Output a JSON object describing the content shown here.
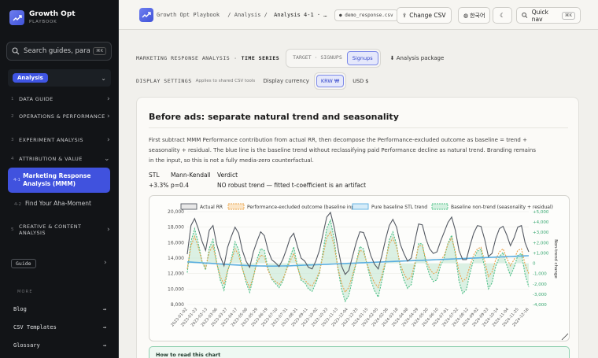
{
  "sidebar": {
    "brand_name": "Growth Opt",
    "brand_sub": "PLAYBOOK",
    "search_placeholder": "Search guides, para...",
    "search_kbd": "⌘K",
    "section_label": "Analysis",
    "nav": [
      {
        "num": "1",
        "label": "DATA GUIDE"
      },
      {
        "num": "2",
        "label": "OPERATIONS & PERFORMANCE"
      },
      {
        "num": "3",
        "label": "EXPERIMENT ANALYSIS"
      },
      {
        "num": "4",
        "label": "ATTRIBUTION & VALUE"
      },
      {
        "num": "5",
        "label": "CREATIVE & CONTENT ANALYSIS"
      }
    ],
    "active_item": {
      "num": "4-1",
      "label": "Marketing Response Analysis (MMM)"
    },
    "sub_item": {
      "num": "4-2",
      "label": "Find Your Aha-Moment"
    },
    "guide_label": "Guide",
    "more_label": "MORE",
    "footer_links": [
      "Blog",
      "CSV Templates",
      "Glossary"
    ]
  },
  "topbar": {
    "crumb1": "Growth Opt Playbook",
    "crumb2": "/ Analysis /",
    "crumb3": "Analysis 4-1 · …",
    "file": "demo_response.csv",
    "change_csv": "Change CSV",
    "lang": "한국어",
    "quick_nav": "Quick nav",
    "quick_kbd": "⌘K"
  },
  "controls": {
    "section": "MARKETING RESPONSE ANALYSIS",
    "sep": "·",
    "mode": "TIME SERIES",
    "seg_label": "TARGET · SIGNUPS",
    "seg_selected": "Signups",
    "package": "Analysis package",
    "display_settings": "DISPLAY SETTINGS",
    "display_note": "Applies to shared CSV tools",
    "currency_label": "Display currency",
    "currency_options": [
      "KRW ₩",
      "USD $"
    ]
  },
  "card": {
    "title": "Before ads: separate natural trend and seasonality",
    "description": "First subtract MMM Performance contribution from actual RR, then decompose the Performance-excluded outcome as baseline = trend + seasonality + residual. The blue line is the baseline trend without reclassifying paid Performance decline as natural trend. Branding remains in the input, so this is not a fully media-zero counterfactual.",
    "stats": {
      "h1": "STL",
      "v1": "+3.3%",
      "h2": "Mann-Kendall",
      "v2": "p=0.4",
      "h3": "Verdict",
      "v3": "NO robust trend — fitted t-coefficient is an artifact"
    },
    "howto": "How to read this chart"
  },
  "chart_data": {
    "type": "line",
    "legend": [
      "Actual RR",
      "Performance-excluded outcome (baseline input)",
      "Pure baseline STL trend",
      "Baseline non-trend (seasonality + residual)"
    ],
    "y_left_ticks": [
      "20,000",
      "18,000",
      "16,000",
      "14,000",
      "12,000",
      "10,000",
      "8,000"
    ],
    "y_left_range": [
      8000,
      20000
    ],
    "y_right_label": "Non-trend change",
    "y_right_ticks": [
      "+5,000",
      "+4,000",
      "+3,000",
      "+2,000",
      "+1,000",
      "0",
      "-1,000",
      "-2,000",
      "-3,000",
      "-4,000"
    ],
    "y_right_range": [
      -4000,
      5000
    ],
    "x_ticks": [
      "2023-01-02",
      "2023-01-23",
      "2023-02-13",
      "2023-03-06",
      "2023-03-27",
      "2023-04-17",
      "2023-05-08",
      "2023-05-29",
      "2023-06-19",
      "2023-07-10",
      "2023-07-31",
      "2023-08-21",
      "2023-09-11",
      "2023-10-02",
      "2023-10-23",
      "2023-11-13",
      "2023-12-04",
      "2023-12-25",
      "2024-01-15",
      "2024-02-05",
      "2024-02-26",
      "2024-03-18",
      "2024-04-08",
      "2024-04-29",
      "2024-05-20",
      "2024-06-10",
      "2024-07-01",
      "2024-07-22",
      "2024-08-12",
      "2024-09-02",
      "2024-09-23",
      "2024-10-14",
      "2024-11-04",
      "2024-11-25",
      "2024-12-16"
    ],
    "colors": {
      "actual": "#555a63",
      "excluded": "#e8a24a",
      "trend": "#5aaee0",
      "nontrend": "#4cbf86",
      "fill": "#bfe6d0"
    },
    "actual": [
      14500,
      18200,
      19100,
      17800,
      16200,
      15000,
      17600,
      18200,
      15800,
      14200,
      13000,
      15400,
      16800,
      18000,
      17200,
      15000,
      13600,
      12800,
      14800,
      16200,
      17400,
      16900,
      15000,
      13800,
      13400,
      12900,
      13800,
      15100,
      16600,
      17200,
      15500,
      14000,
      13600,
      12800,
      12600,
      13600,
      15000,
      17200,
      19300,
      19900,
      18000,
      15400,
      13000,
      11900,
      12400,
      14200,
      16000,
      17400,
      17300,
      16000,
      14300,
      13200,
      12600,
      14300,
      16400,
      18200,
      19000,
      18000,
      15800,
      14600,
      13600,
      14000,
      16200,
      18400,
      18300,
      16500,
      15200,
      14600,
      14800,
      16200,
      17400,
      18600,
      19300,
      17600,
      15000,
      13800,
      13800,
      15600,
      17200,
      18200,
      18100,
      16400,
      14200,
      14600,
      16500,
      17800,
      18100,
      17000,
      15600,
      16600,
      18000,
      18200,
      16000,
      14800
    ],
    "excluded": [
      12600,
      15600,
      16800,
      15400,
      13600,
      12700,
      14800,
      15600,
      13400,
      11600,
      10600,
      12400,
      13600,
      15200,
      14400,
      12600,
      11200,
      10200,
      11600,
      13400,
      14400,
      14200,
      12400,
      11400,
      11000,
      10600,
      11200,
      12400,
      13600,
      14600,
      12800,
      11400,
      11200,
      10600,
      10400,
      11200,
      12200,
      14400,
      16600,
      17400,
      15600,
      12800,
      10800,
      9600,
      10200,
      11800,
      13400,
      15000,
      14800,
      13200,
      11800,
      10800,
      10200,
      11800,
      13600,
      15800,
      16600,
      15400,
      13200,
      12000,
      11200,
      11600,
      13400,
      15600,
      15600,
      13800,
      12600,
      12000,
      12200,
      13600,
      14400,
      15800,
      16600,
      14800,
      12200,
      11000,
      11400,
      13000,
      14400,
      15200,
      15400,
      13600,
      11600,
      12200,
      13800,
      14800,
      15200,
      14000,
      13000,
      13800,
      15000,
      15200,
      13200,
      12000
    ],
    "trend": [
      13500,
      13480,
      13450,
      13420,
      13390,
      13360,
      13330,
      13300,
      13270,
      13240,
      13210,
      13180,
      13150,
      13120,
      13090,
      13060,
      13040,
      13020,
      13000,
      12990,
      12980,
      12970,
      12960,
      12960,
      12960,
      12970,
      12980,
      12990,
      13000,
      13020,
      13040,
      13060,
      13080,
      13100,
      13120,
      13140,
      13160,
      13180,
      13200,
      13220,
      13240,
      13260,
      13280,
      13300,
      13320,
      13340,
      13360,
      13380,
      13400,
      13420,
      13440,
      13460,
      13480,
      13500,
      13520,
      13540,
      13560,
      13580,
      13600,
      13620,
      13640,
      13660,
      13680,
      13700,
      13720,
      13740,
      13760,
      13780,
      13800,
      13820,
      13840,
      13860,
      13880,
      13900,
      13920,
      13940,
      13960,
      13980,
      14000,
      14020,
      14040,
      14060,
      14080,
      14100,
      14120,
      14140,
      14160,
      14180,
      14200,
      14220,
      14240,
      14260,
      14280,
      14300
    ]
  }
}
